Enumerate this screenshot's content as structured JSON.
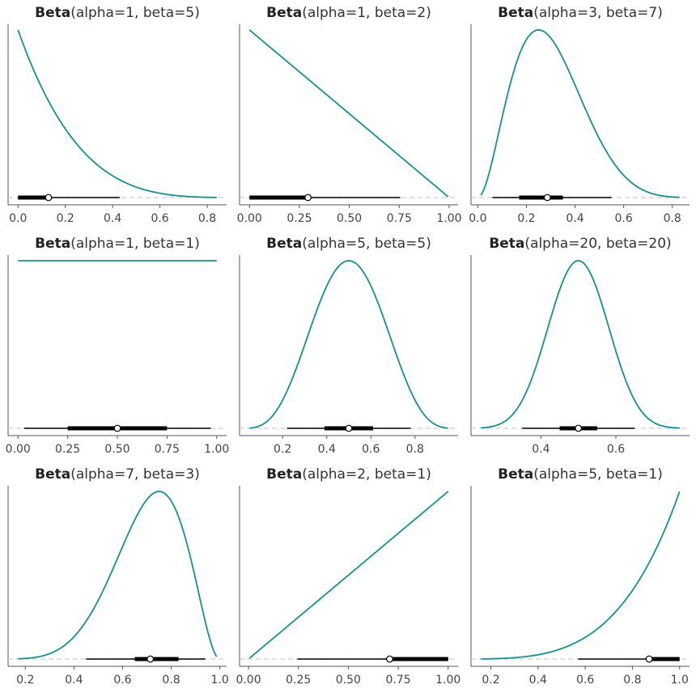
{
  "chart_data": [
    {
      "type": "line",
      "title_bold": "Beta",
      "title_params": "(alpha=1, beta=5)",
      "alpha": 1,
      "beta": 5,
      "xlim": [
        0.0,
        0.84
      ],
      "xticks": [
        "0.0",
        "0.2",
        "0.4",
        "0.6",
        "0.8"
      ],
      "xtick_values": [
        0,
        0.2,
        0.4,
        0.6,
        0.8
      ],
      "median": 0.129,
      "hdi_50": [
        0.0,
        0.13
      ],
      "hdi_94": [
        0.0,
        0.43
      ]
    },
    {
      "type": "line",
      "title_bold": "Beta",
      "title_params": "(alpha=1, beta=2)",
      "alpha": 1,
      "beta": 2,
      "xlim": [
        0.0,
        0.995
      ],
      "xticks": [
        "0.00",
        "0.25",
        "0.50",
        "0.75",
        "1.00"
      ],
      "xtick_values": [
        0,
        0.25,
        0.5,
        0.75,
        1.0
      ],
      "median": 0.293,
      "hdi_50": [
        0.0,
        0.293
      ],
      "hdi_94": [
        0.0,
        0.755
      ]
    },
    {
      "type": "line",
      "title_bold": "Beta",
      "title_params": "(alpha=3, beta=7)",
      "alpha": 3,
      "beta": 7,
      "xlim": [
        0.013,
        0.83
      ],
      "xticks": [
        "0.0",
        "0.2",
        "0.4",
        "0.6",
        "0.8"
      ],
      "xtick_values": [
        0,
        0.2,
        0.4,
        0.6,
        0.8
      ],
      "median": 0.286,
      "hdi_50": [
        0.17,
        0.35
      ],
      "hdi_94": [
        0.06,
        0.55
      ]
    },
    {
      "type": "line",
      "title_bold": "Beta",
      "title_params": "(alpha=1, beta=1)",
      "alpha": 1,
      "beta": 1,
      "xlim": [
        0.0,
        1.0
      ],
      "xticks": [
        "0.00",
        "0.25",
        "0.50",
        "0.75",
        "1.00"
      ],
      "xtick_values": [
        0,
        0.25,
        0.5,
        0.75,
        1.0
      ],
      "median": 0.5,
      "hdi_50": [
        0.25,
        0.75
      ],
      "hdi_94": [
        0.03,
        0.97
      ]
    },
    {
      "type": "line",
      "title_bold": "Beta",
      "title_params": "(alpha=5, beta=5)",
      "alpha": 5,
      "beta": 5,
      "xlim": [
        0.05,
        0.95
      ],
      "xticks": [
        "0.2",
        "0.4",
        "0.6",
        "0.8"
      ],
      "xtick_values": [
        0.2,
        0.4,
        0.6,
        0.8
      ],
      "median": 0.5,
      "hdi_50": [
        0.39,
        0.61
      ],
      "hdi_94": [
        0.22,
        0.78
      ]
    },
    {
      "type": "line",
      "title_bold": "Beta",
      "title_params": "(alpha=20, beta=20)",
      "alpha": 20,
      "beta": 20,
      "xlim": [
        0.24,
        0.77
      ],
      "xticks": [
        "0.4",
        "0.6"
      ],
      "xtick_values": [
        0.4,
        0.6
      ],
      "median": 0.5,
      "hdi_50": [
        0.45,
        0.55
      ],
      "hdi_94": [
        0.35,
        0.65
      ]
    },
    {
      "type": "line",
      "title_bold": "Beta",
      "title_params": "(alpha=7, beta=3)",
      "alpha": 7,
      "beta": 3,
      "xlim": [
        0.17,
        0.987
      ],
      "xticks": [
        "0.2",
        "0.4",
        "0.6",
        "0.8",
        "1.0"
      ],
      "xtick_values": [
        0.2,
        0.4,
        0.6,
        0.8,
        1.0
      ],
      "median": 0.714,
      "hdi_50": [
        0.65,
        0.83
      ],
      "hdi_94": [
        0.45,
        0.94
      ]
    },
    {
      "type": "line",
      "title_bold": "Beta",
      "title_params": "(alpha=2, beta=1)",
      "alpha": 2,
      "beta": 1,
      "xlim": [
        0.005,
        1.0
      ],
      "xticks": [
        "0.00",
        "0.25",
        "0.50",
        "0.75",
        "1.00"
      ],
      "xtick_values": [
        0,
        0.25,
        0.5,
        0.75,
        1.0
      ],
      "median": 0.707,
      "hdi_50": [
        0.707,
        1.0
      ],
      "hdi_94": [
        0.245,
        1.0
      ]
    },
    {
      "type": "line",
      "title_bold": "Beta",
      "title_params": "(alpha=5, beta=1)",
      "alpha": 5,
      "beta": 1,
      "xlim": [
        0.158,
        1.0
      ],
      "xticks": [
        "0.2",
        "0.4",
        "0.6",
        "0.8",
        "1.0"
      ],
      "xtick_values": [
        0.2,
        0.4,
        0.6,
        0.8,
        1.0
      ],
      "median": 0.871,
      "hdi_50": [
        0.87,
        1.0
      ],
      "hdi_94": [
        0.57,
        1.0
      ]
    }
  ],
  "colors": {
    "curve": "#17918f",
    "interval": "#000000",
    "baseline": "#cccccc",
    "spine": "#555555"
  }
}
